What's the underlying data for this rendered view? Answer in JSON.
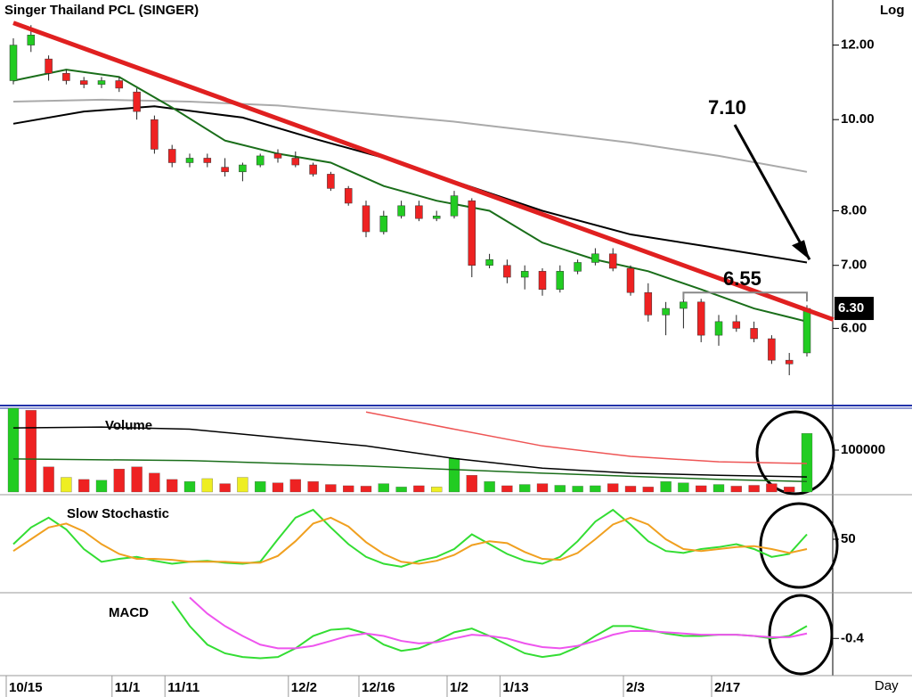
{
  "chart_data": [
    {
      "type": "candlestick",
      "title": "Singer Thailand PCL (SINGER)",
      "scale_label": "Log",
      "x_label": "Day",
      "log_scale": true,
      "categories": [
        "10/15",
        null,
        null,
        null,
        null,
        null,
        "11/1",
        null,
        null,
        "11/11",
        null,
        null,
        null,
        null,
        null,
        null,
        "12/2",
        null,
        null,
        null,
        "12/16",
        null,
        null,
        null,
        null,
        "1/2",
        null,
        null,
        "1/13",
        null,
        null,
        null,
        null,
        null,
        null,
        "2/3",
        null,
        null,
        null,
        null,
        "2/17",
        null,
        null,
        null,
        null,
        null
      ],
      "open": [
        11.0,
        12.0,
        11.6,
        11.2,
        11.0,
        10.9,
        11.0,
        10.7,
        10.0,
        9.3,
        9.0,
        9.1,
        8.9,
        8.8,
        8.95,
        9.2,
        9.1,
        8.95,
        8.75,
        8.45,
        8.1,
        7.6,
        7.9,
        8.1,
        7.85,
        7.9,
        8.2,
        7.0,
        7.0,
        6.8,
        6.9,
        6.6,
        6.9,
        7.05,
        7.2,
        6.95,
        6.55,
        6.2,
        6.3,
        6.4,
        5.9,
        6.1,
        6.0,
        5.85,
        5.55,
        5.65
      ],
      "high": [
        12.2,
        12.6,
        11.7,
        11.3,
        11.1,
        11.1,
        11.1,
        10.8,
        10.1,
        9.4,
        9.2,
        9.2,
        9.1,
        9.0,
        9.2,
        9.3,
        9.25,
        9.0,
        8.8,
        8.5,
        8.2,
        8.0,
        8.2,
        8.2,
        8.0,
        8.4,
        8.25,
        7.2,
        7.1,
        7.0,
        6.95,
        7.0,
        7.1,
        7.3,
        7.3,
        7.0,
        6.7,
        6.4,
        6.5,
        6.45,
        6.2,
        6.2,
        6.1,
        5.9,
        5.65,
        6.35
      ],
      "low": [
        10.9,
        11.8,
        11.0,
        10.9,
        10.8,
        10.8,
        10.7,
        10.0,
        9.2,
        8.9,
        8.9,
        8.9,
        8.7,
        8.6,
        8.9,
        9.0,
        8.9,
        8.7,
        8.4,
        8.1,
        7.5,
        7.55,
        7.85,
        7.8,
        7.8,
        7.85,
        6.8,
        6.95,
        6.7,
        6.6,
        6.5,
        6.55,
        6.85,
        7.0,
        6.9,
        6.5,
        6.1,
        5.9,
        6.0,
        5.8,
        5.75,
        5.95,
        5.8,
        5.5,
        5.35,
        5.6
      ],
      "close": [
        12.0,
        12.3,
        11.2,
        11.0,
        10.9,
        11.0,
        10.8,
        10.2,
        9.3,
        9.0,
        9.1,
        9.0,
        8.8,
        8.95,
        9.15,
        9.1,
        8.95,
        8.75,
        8.45,
        8.15,
        7.6,
        7.9,
        8.1,
        7.85,
        7.9,
        8.3,
        7.0,
        7.1,
        6.8,
        6.9,
        6.6,
        6.9,
        7.05,
        7.2,
        6.95,
        6.55,
        6.2,
        6.3,
        6.4,
        5.9,
        6.1,
        6.0,
        5.85,
        5.55,
        5.5,
        6.3
      ],
      "up_color": "#22cc22",
      "down_color": "#ee2222",
      "ylim": [
        5.0,
        13.4
      ],
      "yticks": [
        {
          "value": 12,
          "label": "12.00"
        },
        {
          "value": 10,
          "label": "10.00"
        },
        {
          "value": 8,
          "label": "8.00"
        },
        {
          "value": 7,
          "label": "7.00"
        },
        {
          "value": 6,
          "label": "6.00"
        }
      ],
      "lines": [
        {
          "color": "#aaaaaa",
          "x": [
            0,
            5,
            10,
            15,
            20,
            25,
            30,
            35,
            40,
            45
          ],
          "values": [
            10.45,
            10.5,
            10.45,
            10.35,
            10.15,
            9.95,
            9.7,
            9.45,
            9.15,
            8.8
          ]
        },
        {
          "color": "#000000",
          "x": [
            0,
            4,
            8,
            13,
            17,
            22,
            25,
            30,
            35,
            40,
            45
          ],
          "values": [
            9.9,
            10.2,
            10.33,
            10.05,
            9.55,
            9.0,
            8.6,
            8.0,
            7.55,
            7.3,
            7.05
          ]
        },
        {
          "color": "#1a6e1a",
          "x": [
            0,
            3,
            6,
            9,
            12,
            15,
            18,
            21,
            24,
            27,
            30,
            33,
            36,
            39,
            42,
            45
          ],
          "values": [
            11.0,
            11.3,
            11.1,
            10.3,
            9.5,
            9.2,
            9.0,
            8.5,
            8.2,
            8.0,
            7.4,
            7.1,
            6.9,
            6.6,
            6.3,
            6.1
          ]
        }
      ],
      "trendline": {
        "color": "#e02020",
        "x": [
          0,
          46.5
        ],
        "values": [
          12.67,
          6.13
        ]
      },
      "annotations": [
        {
          "label": "7.10",
          "value": 7.1
        },
        {
          "label": "6.55",
          "value": 6.55
        },
        {
          "label": "6.30",
          "value": 6.3
        }
      ]
    },
    {
      "type": "bar",
      "title": "Volume",
      "values": [
        200000,
        195000,
        60000,
        35000,
        30000,
        28000,
        55000,
        60000,
        45000,
        30000,
        25000,
        32000,
        20000,
        35000,
        25000,
        22000,
        30000,
        25000,
        18000,
        15000,
        14000,
        20000,
        12000,
        15000,
        12000,
        80000,
        40000,
        25000,
        15000,
        18000,
        20000,
        16000,
        14000,
        15000,
        20000,
        14000,
        12000,
        25000,
        22000,
        15000,
        18000,
        14000,
        16000,
        20000,
        12000,
        140000
      ],
      "bar_colors": [
        "#22cc22",
        "#ee2222",
        "#ee2222",
        "#eeee22",
        "#ee2222",
        "#22cc22",
        "#ee2222",
        "#ee2222",
        "#ee2222",
        "#ee2222",
        "#22cc22",
        "#eeee22",
        "#ee2222",
        "#eeee22",
        "#22cc22",
        "#ee2222",
        "#ee2222",
        "#ee2222",
        "#ee2222",
        "#ee2222",
        "#ee2222",
        "#22cc22",
        "#22cc22",
        "#ee2222",
        "#eeee22",
        "#22cc22",
        "#ee2222",
        "#22cc22",
        "#ee2222",
        "#22cc22",
        "#ee2222",
        "#22cc22",
        "#22cc22",
        "#22cc22",
        "#ee2222",
        "#ee2222",
        "#ee2222",
        "#22cc22",
        "#22cc22",
        "#ee2222",
        "#22cc22",
        "#ee2222",
        "#ee2222",
        "#ee2222",
        "#ee2222",
        "#22cc22"
      ],
      "ylim": [
        0,
        200000
      ],
      "yticks": [
        100000
      ],
      "lines": [
        {
          "color": "#000000",
          "x": [
            0,
            5,
            10,
            15,
            20,
            25,
            30,
            35,
            40,
            45
          ],
          "values": [
            153000,
            155000,
            150000,
            130000,
            110000,
            80000,
            57000,
            45000,
            40000,
            36000
          ]
        },
        {
          "color": "#ee5555",
          "x": [
            20,
            25,
            30,
            35,
            40,
            45
          ],
          "values": [
            191000,
            150000,
            110000,
            85000,
            72000,
            68000
          ]
        },
        {
          "color": "#1a6e1a",
          "x": [
            0,
            10,
            20,
            30,
            40,
            45
          ],
          "values": [
            79000,
            75000,
            62000,
            45000,
            30000,
            25000
          ]
        }
      ]
    },
    {
      "type": "line",
      "title": "Slow Stochastic",
      "series": [
        {
          "color": "#33dd33",
          "values": [
            45,
            62,
            72,
            60,
            40,
            27,
            30,
            32,
            28,
            25,
            27,
            28,
            26,
            25,
            27,
            50,
            72,
            80,
            62,
            45,
            32,
            25,
            22,
            28,
            32,
            40,
            55,
            45,
            35,
            28,
            25,
            32,
            48,
            68,
            80,
            65,
            48,
            38,
            36,
            40,
            42,
            45,
            40,
            32,
            35,
            55
          ]
        },
        {
          "color": "#f0a020",
          "values": [
            38,
            50,
            62,
            66,
            58,
            45,
            35,
            30,
            30,
            29,
            27,
            27,
            27,
            26,
            26,
            33,
            48,
            66,
            72,
            63,
            47,
            35,
            27,
            25,
            28,
            34,
            44,
            48,
            46,
            37,
            30,
            29,
            36,
            50,
            65,
            72,
            65,
            50,
            40,
            38,
            40,
            42,
            43,
            40,
            36,
            40
          ]
        }
      ],
      "ylim": [
        0,
        100
      ],
      "yticks": [
        50
      ]
    },
    {
      "type": "line",
      "title": "MACD",
      "series": [
        {
          "color": "#33dd33",
          "values": [
            null,
            null,
            null,
            null,
            null,
            null,
            null,
            null,
            null,
            -0.1,
            -0.3,
            -0.45,
            -0.52,
            -0.55,
            -0.56,
            -0.55,
            -0.48,
            -0.38,
            -0.33,
            -0.32,
            -0.36,
            -0.45,
            -0.5,
            -0.48,
            -0.42,
            -0.35,
            -0.32,
            -0.38,
            -0.45,
            -0.52,
            -0.55,
            -0.53,
            -0.47,
            -0.38,
            -0.3,
            -0.3,
            -0.33,
            -0.36,
            -0.38,
            -0.38,
            -0.37,
            -0.37,
            -0.38,
            -0.4,
            -0.38,
            -0.3
          ]
        },
        {
          "color": "#ee55ee",
          "values": [
            null,
            null,
            null,
            null,
            null,
            null,
            null,
            null,
            null,
            null,
            -0.07,
            -0.2,
            -0.3,
            -0.38,
            -0.45,
            -0.48,
            -0.48,
            -0.46,
            -0.42,
            -0.38,
            -0.36,
            -0.38,
            -0.42,
            -0.44,
            -0.43,
            -0.4,
            -0.37,
            -0.38,
            -0.4,
            -0.44,
            -0.47,
            -0.48,
            -0.46,
            -0.42,
            -0.37,
            -0.34,
            -0.34,
            -0.35,
            -0.36,
            -0.37,
            -0.37,
            -0.37,
            -0.38,
            -0.39,
            -0.39,
            -0.36
          ]
        }
      ],
      "ylim": [
        -0.7,
        -0.067
      ],
      "yticks": [
        -0.4
      ]
    }
  ]
}
